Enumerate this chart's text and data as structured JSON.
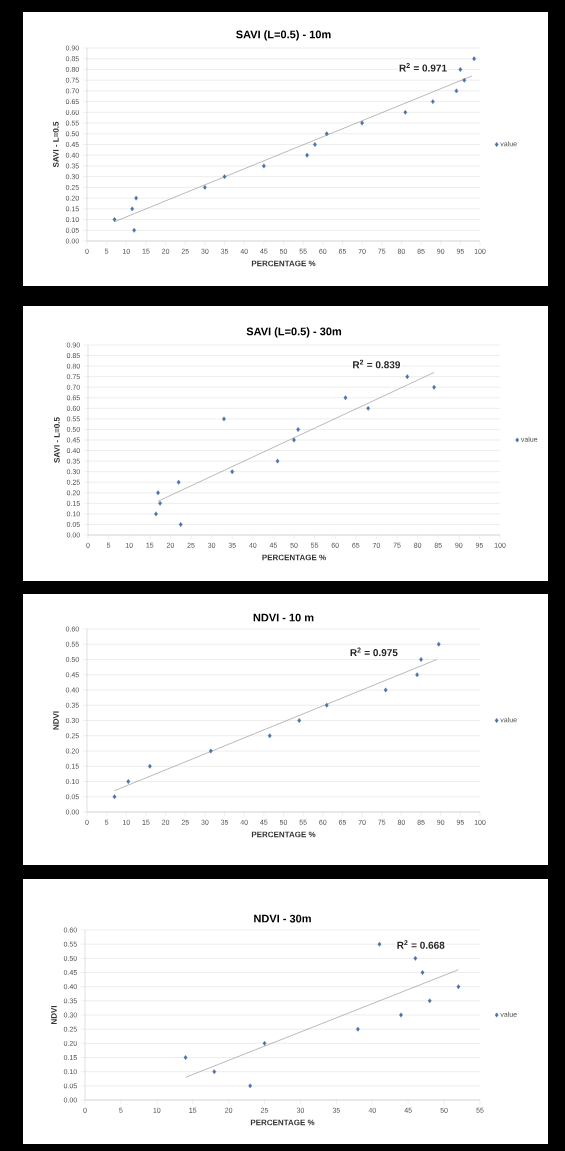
{
  "chart_data": [
    {
      "type": "scatter",
      "title": "SAVI (L=0.5) - 10m",
      "xlabel": "PERCENTAGE %",
      "ylabel": "SAVI - L=0.5",
      "grid": "y",
      "legend": "right",
      "xlim": [
        0,
        100
      ],
      "xticks": [
        0,
        5,
        10,
        15,
        20,
        25,
        30,
        35,
        40,
        45,
        50,
        55,
        60,
        65,
        70,
        75,
        80,
        85,
        90,
        95,
        100
      ],
      "ylim": [
        0,
        0.9
      ],
      "yticks": [
        {
          "value": 0,
          "label": "0.00"
        },
        {
          "value": 0.05,
          "label": "0.05"
        },
        {
          "value": 0.1,
          "label": "0.10"
        },
        {
          "value": 0.15,
          "label": "0.15"
        },
        {
          "value": 0.2,
          "label": "0.20"
        },
        {
          "value": 0.25,
          "label": "0.25"
        },
        {
          "value": 0.3,
          "label": "0.30"
        },
        {
          "value": 0.35,
          "label": "0.35"
        },
        {
          "value": 0.4,
          "label": "0.40"
        },
        {
          "value": 0.45,
          "label": "0.45"
        },
        {
          "value": 0.5,
          "label": "0.50"
        },
        {
          "value": 0.55,
          "label": "0.55"
        },
        {
          "value": 0.6,
          "label": "0.60"
        },
        {
          "value": 0.65,
          "label": "0.65"
        },
        {
          "value": 0.7,
          "label": "0.70"
        },
        {
          "value": 0.75,
          "label": "0.75"
        },
        {
          "value": 0.8,
          "label": "0.80"
        },
        {
          "value": 0.85,
          "label": "0.85"
        },
        {
          "value": 0.9,
          "label": "0.90"
        }
      ],
      "annotations": [
        "R$^{2}$ = 0.971"
      ],
      "series": [
        {
          "name": "value",
          "marker": "diamond",
          "color": "#4a72a8",
          "x": [
            7,
            11.5,
            12,
            12.5,
            30,
            35,
            45,
            56,
            58,
            61,
            70,
            81,
            88,
            94,
            95,
            96,
            98.5
          ],
          "values": [
            0.1,
            0.15,
            0.05,
            0.2,
            0.25,
            0.3,
            0.35,
            0.4,
            0.45,
            0.5,
            0.55,
            0.6,
            0.65,
            0.7,
            0.8,
            0.75,
            0.85
          ]
        },
        {
          "type": "line",
          "marker": "none",
          "color": "#8c8c8c",
          "x": [
            7,
            98
          ],
          "values": [
            0.09,
            0.77
          ]
        }
      ]
    },
    {
      "type": "scatter",
      "title": "SAVI (L=0.5) - 30m",
      "xlabel": "PERCENTAGE %",
      "ylabel": "SAVI - L=0.5",
      "grid": "y",
      "legend": "right",
      "xlim": [
        0,
        100
      ],
      "xticks": [
        0,
        5,
        10,
        15,
        20,
        25,
        30,
        35,
        40,
        45,
        50,
        55,
        60,
        65,
        70,
        75,
        80,
        85,
        90,
        95,
        100
      ],
      "ylim": [
        0,
        0.9
      ],
      "yticks": [
        {
          "value": 0,
          "label": "0.00"
        },
        {
          "value": 0.05,
          "label": "0.05"
        },
        {
          "value": 0.1,
          "label": "0.10"
        },
        {
          "value": 0.15,
          "label": "0.15"
        },
        {
          "value": 0.2,
          "label": "0.20"
        },
        {
          "value": 0.25,
          "label": "0.25"
        },
        {
          "value": 0.3,
          "label": "0.30"
        },
        {
          "value": 0.35,
          "label": "0.35"
        },
        {
          "value": 0.4,
          "label": "0.40"
        },
        {
          "value": 0.45,
          "label": "0.45"
        },
        {
          "value": 0.5,
          "label": "0.50"
        },
        {
          "value": 0.55,
          "label": "0.55"
        },
        {
          "value": 0.6,
          "label": "0.60"
        },
        {
          "value": 0.65,
          "label": "0.65"
        },
        {
          "value": 0.7,
          "label": "0.70"
        },
        {
          "value": 0.75,
          "label": "0.75"
        },
        {
          "value": 0.8,
          "label": "0.80"
        },
        {
          "value": 0.85,
          "label": "0.85"
        },
        {
          "value": 0.9,
          "label": "0.90"
        }
      ],
      "annotations": [
        "R$^{2}$ = 0.839"
      ],
      "series": [
        {
          "name": "value",
          "marker": "diamond",
          "color": "#4a72a8",
          "x": [
            16.5,
            17,
            17.5,
            22,
            22.5,
            33,
            35,
            46,
            50,
            51,
            62.5,
            68,
            77.5,
            84
          ],
          "values": [
            0.1,
            0.2,
            0.15,
            0.25,
            0.05,
            0.55,
            0.3,
            0.35,
            0.45,
            0.5,
            0.65,
            0.6,
            0.75,
            0.7
          ]
        },
        {
          "type": "line",
          "marker": "none",
          "color": "#8c8c8c",
          "x": [
            17,
            84
          ],
          "values": [
            0.16,
            0.77
          ]
        }
      ]
    },
    {
      "type": "scatter",
      "title": "NDVI - 10 m",
      "xlabel": "PERCENTAGE %",
      "ylabel": "NDVI",
      "grid": "y",
      "legend": "right",
      "xlim": [
        0,
        100
      ],
      "xticks": [
        0,
        5,
        10,
        15,
        20,
        25,
        30,
        35,
        40,
        45,
        50,
        55,
        60,
        65,
        70,
        75,
        80,
        85,
        90,
        95,
        100
      ],
      "ylim": [
        0,
        0.6
      ],
      "yticks": [
        {
          "value": 0,
          "label": "0.00"
        },
        {
          "value": 0.05,
          "label": "0.05"
        },
        {
          "value": 0.1,
          "label": "0.10"
        },
        {
          "value": 0.15,
          "label": "0.15"
        },
        {
          "value": 0.2,
          "label": "0.20"
        },
        {
          "value": 0.25,
          "label": "0.25"
        },
        {
          "value": 0.3,
          "label": "0.30"
        },
        {
          "value": 0.35,
          "label": "0.35"
        },
        {
          "value": 0.4,
          "label": "0.40"
        },
        {
          "value": 0.45,
          "label": "0.45"
        },
        {
          "value": 0.5,
          "label": "0.50"
        },
        {
          "value": 0.55,
          "label": "0.55"
        },
        {
          "value": 0.6,
          "label": "0.60"
        }
      ],
      "annotations": [
        "R$^{2}$ = 0.975"
      ],
      "series": [
        {
          "name": "value",
          "marker": "diamond",
          "color": "#4a72a8",
          "x": [
            7,
            10.5,
            16,
            31.5,
            46.5,
            54,
            61,
            76,
            84,
            85,
            89.5
          ],
          "values": [
            0.05,
            0.1,
            0.15,
            0.2,
            0.25,
            0.3,
            0.35,
            0.4,
            0.45,
            0.5,
            0.55
          ]
        },
        {
          "type": "line",
          "marker": "none",
          "color": "#8c8c8c",
          "x": [
            7,
            89
          ],
          "values": [
            0.07,
            0.5
          ]
        }
      ]
    },
    {
      "type": "scatter",
      "title": "NDVI - 30m",
      "xlabel": "PERCENTAGE %",
      "ylabel": "NDVI",
      "grid": "y",
      "legend": "right",
      "xlim": [
        0,
        55
      ],
      "xticks": [
        0,
        5,
        10,
        15,
        20,
        25,
        30,
        35,
        40,
        45,
        50,
        55
      ],
      "ylim": [
        0,
        0.6
      ],
      "yticks": [
        {
          "value": 0,
          "label": "0.00"
        },
        {
          "value": 0.05,
          "label": "0.05"
        },
        {
          "value": 0.1,
          "label": "0.10"
        },
        {
          "value": 0.15,
          "label": "0.15"
        },
        {
          "value": 0.2,
          "label": "0.20"
        },
        {
          "value": 0.25,
          "label": "0.25"
        },
        {
          "value": 0.3,
          "label": "0.30"
        },
        {
          "value": 0.35,
          "label": "0.35"
        },
        {
          "value": 0.4,
          "label": "0.40"
        },
        {
          "value": 0.45,
          "label": "0.45"
        },
        {
          "value": 0.5,
          "label": "0.50"
        },
        {
          "value": 0.55,
          "label": "0.55"
        },
        {
          "value": 0.6,
          "label": "0.60"
        }
      ],
      "annotations": [
        "R$^{2}$ = 0.668"
      ],
      "series": [
        {
          "name": "value",
          "marker": "diamond",
          "color": "#4a72a8",
          "x": [
            14,
            18,
            23,
            25,
            38,
            41,
            44,
            46,
            47,
            48,
            52
          ],
          "values": [
            0.15,
            0.1,
            0.05,
            0.2,
            0.25,
            0.55,
            0.3,
            0.5,
            0.45,
            0.35,
            0.4
          ]
        },
        {
          "type": "line",
          "marker": "none",
          "color": "#8c8c8c",
          "x": [
            14,
            52
          ],
          "values": [
            0.08,
            0.46
          ]
        }
      ]
    }
  ]
}
